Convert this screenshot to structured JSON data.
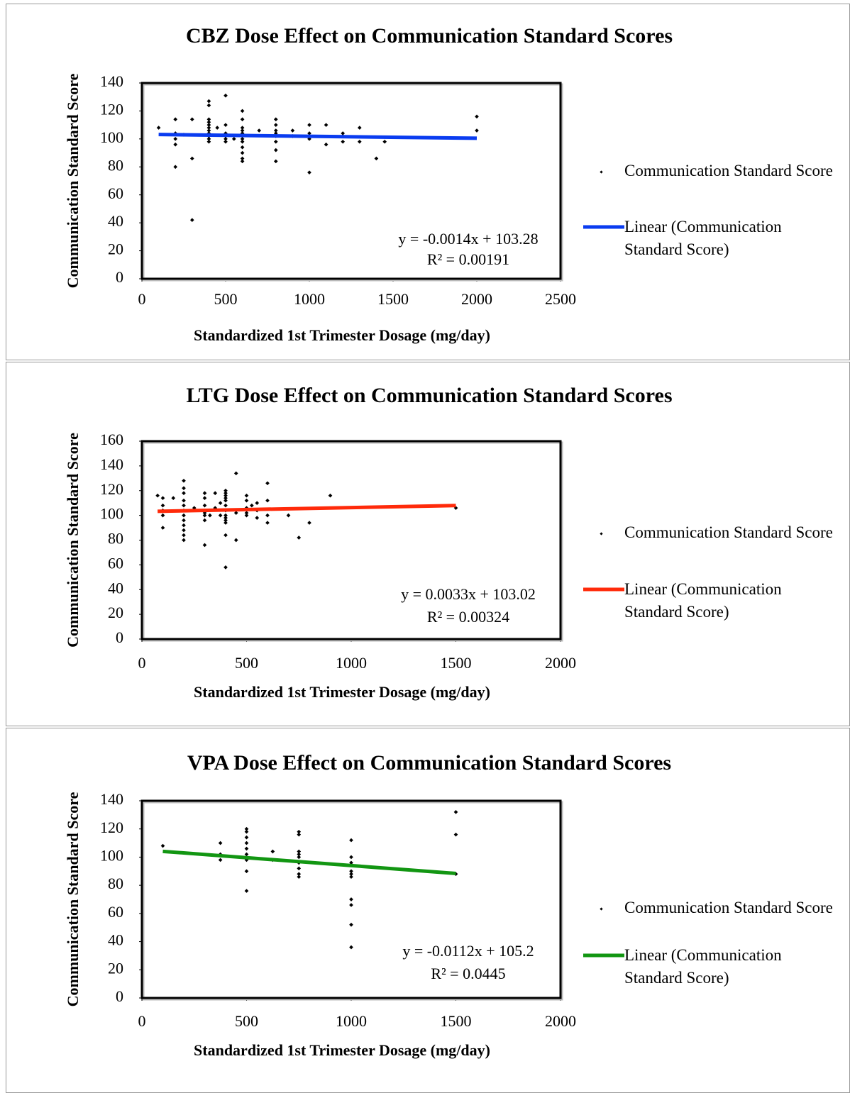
{
  "chart_data": [
    {
      "type": "scatter",
      "title": "CBZ Dose Effect on Communication Standard Scores",
      "x_label": "Standardized 1st Trimester Dosage (mg/day)",
      "y_label": "Communication Standard Score",
      "xlim": [
        0,
        2500
      ],
      "xticks": [
        0,
        500,
        1000,
        1500,
        2000,
        2500
      ],
      "ylim": [
        0,
        140
      ],
      "yticks": [
        0,
        20,
        40,
        60,
        80,
        100,
        120,
        140
      ],
      "annotations": [
        "y = -0.0014x + 103.28",
        "R² = 0.00191"
      ],
      "series": [
        {
          "name": "Communication Standard Score",
          "color": "#000000",
          "x": [
            100,
            200,
            200,
            200,
            200,
            200,
            250,
            300,
            300,
            300,
            400,
            400,
            400,
            400,
            400,
            400,
            400,
            400,
            400,
            400,
            400,
            450,
            500,
            500,
            500,
            500,
            500,
            500,
            550,
            600,
            600,
            600,
            600,
            600,
            600,
            600,
            600,
            600,
            600,
            600,
            600,
            700,
            800,
            800,
            800,
            800,
            800,
            800,
            800,
            800,
            900,
            900,
            1000,
            1000,
            1000,
            1000,
            1000,
            1100,
            1100,
            1200,
            1200,
            1200,
            1300,
            1300,
            1400,
            1450,
            2000,
            2000
          ],
          "values": [
            108,
            114,
            104,
            100,
            96,
            80,
            103,
            114,
            86,
            42,
            127,
            124,
            114,
            112,
            110,
            108,
            106,
            104,
            102,
            100,
            98,
            108,
            131,
            110,
            104,
            102,
            100,
            98,
            100,
            120,
            114,
            108,
            106,
            104,
            102,
            100,
            98,
            94,
            90,
            86,
            84,
            106,
            114,
            110,
            106,
            104,
            102,
            98,
            92,
            84,
            106,
            102,
            110,
            104,
            102,
            100,
            76,
            110,
            96,
            104,
            102,
            98,
            108,
            98,
            86,
            98,
            116,
            106
          ]
        },
        {
          "name": "Linear (Communication Standard Score)",
          "color": "#0a3cf0",
          "x": [
            100,
            2000
          ],
          "values": [
            103.14,
            100.48
          ]
        }
      ]
    },
    {
      "type": "scatter",
      "title": "LTG Dose Effect on Communication Standard Scores",
      "x_label": "Standardized 1st Trimester Dosage (mg/day)",
      "y_label": "Communication Standard Score",
      "xlim": [
        0,
        2000
      ],
      "xticks": [
        0,
        500,
        1000,
        1500,
        2000
      ],
      "ylim": [
        0,
        160
      ],
      "yticks": [
        0,
        20,
        40,
        60,
        80,
        100,
        120,
        140,
        160
      ],
      "annotations": [
        "y = 0.0033x + 103.02",
        "R² = 0.00324"
      ],
      "series": [
        {
          "name": "Communication Standard Score",
          "color": "#000000",
          "x": [
            75,
            100,
            100,
            100,
            100,
            100,
            150,
            200,
            200,
            200,
            200,
            200,
            200,
            200,
            200,
            200,
            200,
            200,
            200,
            250,
            300,
            300,
            300,
            300,
            300,
            300,
            300,
            325,
            350,
            350,
            375,
            375,
            400,
            400,
            400,
            400,
            400,
            400,
            400,
            400,
            400,
            400,
            400,
            400,
            400,
            450,
            450,
            450,
            500,
            500,
            500,
            500,
            500,
            525,
            550,
            550,
            550,
            600,
            600,
            600,
            600,
            700,
            750,
            800,
            900,
            1500
          ],
          "values": [
            116,
            114,
            108,
            104,
            100,
            90,
            114,
            128,
            122,
            118,
            112,
            108,
            104,
            100,
            96,
            92,
            88,
            84,
            80,
            106,
            118,
            114,
            108,
            102,
            100,
            96,
            76,
            100,
            118,
            106,
            110,
            100,
            120,
            118,
            116,
            114,
            112,
            108,
            104,
            100,
            98,
            96,
            94,
            84,
            58,
            134,
            102,
            80,
            116,
            112,
            106,
            102,
            100,
            108,
            110,
            104,
            98,
            126,
            112,
            100,
            94,
            100,
            82,
            94,
            116,
            106
          ]
        },
        {
          "name": "Linear (Communication Standard Score)",
          "color": "#ff2a0a",
          "x": [
            75,
            1500
          ],
          "values": [
            103.27,
            107.97
          ]
        }
      ]
    },
    {
      "type": "scatter",
      "title": "VPA Dose Effect on Communication Standard Scores",
      "x_label": "Standardized 1st Trimester Dosage (mg/day)",
      "y_label": "Communication Standard Score",
      "xlim": [
        0,
        2000
      ],
      "xticks": [
        0,
        500,
        1000,
        1500,
        2000
      ],
      "ylim": [
        0,
        140
      ],
      "yticks": [
        0,
        20,
        40,
        60,
        80,
        100,
        120,
        140
      ],
      "annotations": [
        "y = -0.0112x + 105.2",
        "R² = 0.0445"
      ],
      "series": [
        {
          "name": "Communication Standard Score",
          "color": "#000000",
          "x": [
            100,
            375,
            375,
            375,
            500,
            500,
            500,
            500,
            500,
            500,
            500,
            500,
            500,
            625,
            625,
            750,
            750,
            750,
            750,
            750,
            750,
            750,
            750,
            750,
            1000,
            1000,
            1000,
            1000,
            1000,
            1000,
            1000,
            1000,
            1000,
            1000,
            1500,
            1500,
            1500
          ],
          "values": [
            108,
            110,
            102,
            98,
            120,
            118,
            114,
            110,
            106,
            102,
            98,
            90,
            76,
            104,
            98,
            118,
            116,
            104,
            102,
            100,
            96,
            92,
            88,
            86,
            112,
            100,
            96,
            90,
            88,
            86,
            70,
            66,
            52,
            36,
            132,
            116,
            88
          ]
        },
        {
          "name": "Linear (Communication Standard Score)",
          "color": "#129612",
          "x": [
            100,
            1500
          ],
          "values": [
            104.08,
            88.4
          ]
        }
      ]
    }
  ]
}
